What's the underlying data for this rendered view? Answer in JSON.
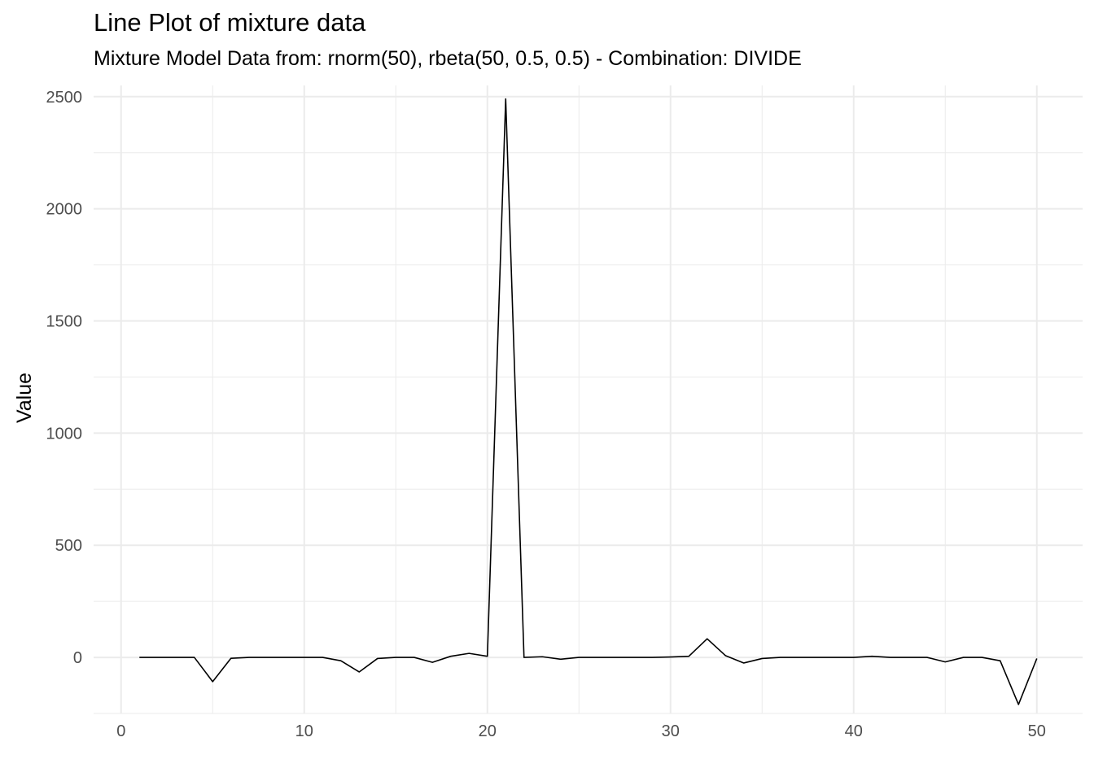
{
  "chart_data": {
    "type": "line",
    "title": "Line Plot of mixture data",
    "subtitle": "Mixture Model Data from: rnorm(50), rbeta(50, 0.5, 0.5) - Combination: DIVIDE",
    "xlabel": "",
    "ylabel": "Value",
    "xlim": [
      -1.5,
      52.5
    ],
    "ylim": [
      -250,
      2550
    ],
    "x_ticks": [
      0,
      10,
      20,
      30,
      40,
      50
    ],
    "y_ticks": [
      0,
      500,
      1000,
      1500,
      2000,
      2500
    ],
    "grid": true,
    "line_color": "#000000",
    "series": [
      {
        "x": [
          1,
          2,
          3,
          4,
          5,
          6,
          7,
          8,
          9,
          10,
          11,
          12,
          13,
          14,
          15,
          16,
          17,
          18,
          19,
          20,
          21,
          22,
          23,
          24,
          25,
          26,
          27,
          28,
          29,
          30,
          31,
          32,
          33,
          34,
          35,
          36,
          37,
          38,
          39,
          40,
          41,
          42,
          43,
          44,
          45,
          46,
          47,
          48,
          49,
          50
        ],
        "values": [
          0,
          0,
          0,
          0,
          -108,
          -4,
          0,
          0,
          0,
          0,
          0,
          -15,
          -65,
          -5,
          0,
          0,
          -22,
          5,
          18,
          5,
          2490,
          0,
          3,
          -8,
          0,
          0,
          0,
          0,
          0,
          2,
          5,
          83,
          8,
          -25,
          -5,
          0,
          0,
          0,
          0,
          0,
          5,
          0,
          0,
          0,
          -20,
          0,
          0,
          -15,
          -210,
          -5
        ]
      }
    ]
  }
}
